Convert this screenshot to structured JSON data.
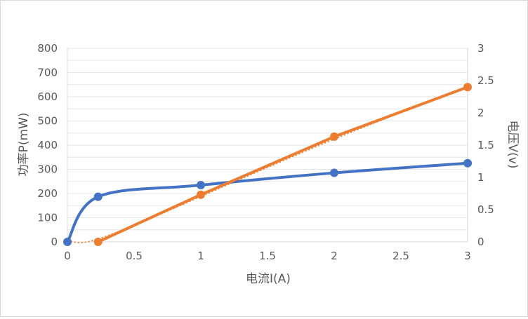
{
  "chart_data": {
    "type": "line",
    "xlabel": "电流I(A)",
    "ylabel": "功率P(mW)",
    "y2label": "电压V(v)",
    "xlim": [
      0,
      3
    ],
    "ylim": [
      0,
      800
    ],
    "y2lim": [
      0,
      3
    ],
    "x_ticks": [
      "0",
      "0.5",
      "1",
      "1.5",
      "2",
      "2.5",
      "3"
    ],
    "y_ticks": [
      "0",
      "100",
      "200",
      "300",
      "400",
      "500",
      "600",
      "700",
      "800"
    ],
    "y2_ticks": [
      "0",
      "0.5",
      "1",
      "1.5",
      "2",
      "2.5",
      "3"
    ],
    "grid": true,
    "legend": "none",
    "series": [
      {
        "axis": "right",
        "color": "#4472c4",
        "smooth": true,
        "points": [
          [
            0,
            0
          ],
          [
            0.23,
            0.7
          ],
          [
            1,
            0.88
          ],
          [
            2,
            1.07
          ],
          [
            3,
            1.22
          ]
        ]
      },
      {
        "axis": "left",
        "color": "#ed7d31",
        "smooth": false,
        "points": [
          [
            0.23,
            0
          ],
          [
            1,
            195
          ],
          [
            2,
            435
          ],
          [
            3,
            640
          ]
        ]
      }
    ],
    "trendline": {
      "of_series": 1,
      "color": "#ed7d31",
      "style": "dotted",
      "points": [
        [
          0,
          5
        ],
        [
          0.1,
          -3
        ],
        [
          0.23,
          12
        ],
        [
          0.5,
          68
        ],
        [
          1,
          188
        ],
        [
          1.5,
          308
        ],
        [
          2,
          425
        ],
        [
          2.5,
          535
        ],
        [
          3,
          638
        ]
      ]
    }
  }
}
